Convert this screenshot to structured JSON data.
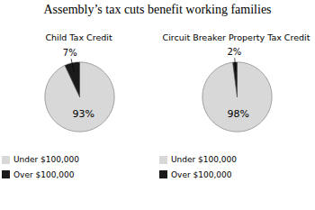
{
  "title": "Assembly’s tax cuts benefit working families",
  "chart_data": [
    {
      "type": "pie",
      "title": "Child Tax Credit",
      "categories": [
        "Under $100,000",
        "Over $100,000"
      ],
      "values": [
        93,
        7
      ],
      "value_labels": [
        "93%",
        "7%"
      ],
      "colors": [
        "#d8d8d8",
        "#1a1a1a"
      ],
      "data_labels": true,
      "legend": "bottom"
    },
    {
      "type": "pie",
      "title": "Circuit Breaker Property Tax Credit",
      "categories": [
        "Under $100,000",
        "Over $100,000"
      ],
      "values": [
        98,
        2
      ],
      "value_labels": [
        "98%",
        "2%"
      ],
      "colors": [
        "#d8d8d8",
        "#1a1a1a"
      ],
      "data_labels": true,
      "legend": "bottom"
    }
  ]
}
